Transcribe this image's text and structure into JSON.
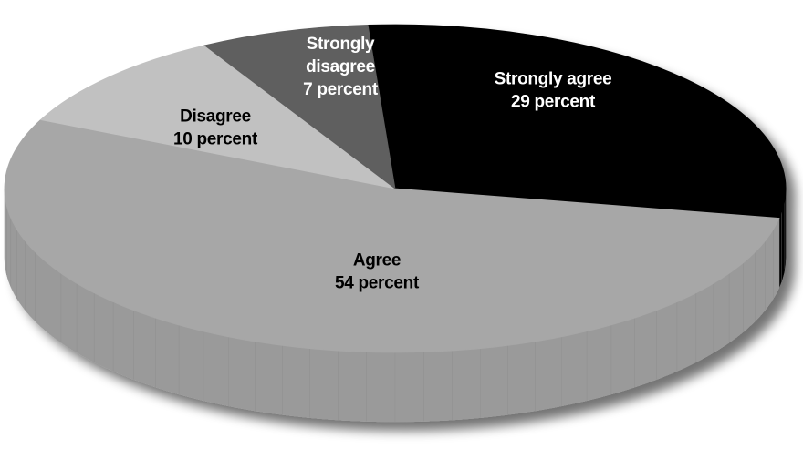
{
  "chart_data": {
    "type": "pie",
    "style": "3d-tilted",
    "title": "",
    "slices": [
      {
        "label_lines": [
          "Strongly agree",
          "29 percent"
        ],
        "value": 29,
        "color": "#000000",
        "side_color": "#060606",
        "label_color": "#ffffff"
      },
      {
        "label_lines": [
          "Agree",
          "54 percent"
        ],
        "value": 54,
        "color": "#a7a7a7",
        "side_color": "#9a9a9a",
        "label_color": "#000000"
      },
      {
        "label_lines": [
          "Disagree",
          "10 percent"
        ],
        "value": 10,
        "color": "#c1c1c1",
        "side_color": "#b0b0b0",
        "label_color": "#000000"
      },
      {
        "label_lines": [
          "Strongly",
          "disagree",
          "7 percent"
        ],
        "value": 7,
        "color": "#5e5e5e",
        "side_color": "#4a4a4a",
        "label_color": "#ffffff"
      }
    ],
    "legend": "none"
  }
}
